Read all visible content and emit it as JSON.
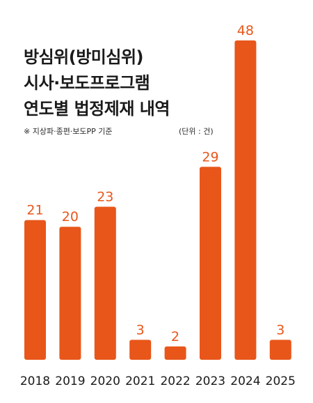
{
  "title_lines": [
    "방심위(방미심위)",
    "시사·보도프로그램",
    "연도별 법정제재 내역"
  ],
  "note": "※ 지상파·종편·보도PP 기준",
  "unit": "(단위 : 건)",
  "colors": {
    "bar": "#e8561a",
    "value_label": "#e8561a",
    "title": "#1a1a1a",
    "axis_label": "#1a1a1a"
  },
  "chart_data": {
    "type": "bar",
    "title": "방심위(방미심위) 시사·보도프로그램 연도별 법정제재 내역",
    "categories": [
      "2018",
      "2019",
      "2020",
      "2021",
      "2022",
      "2023",
      "2024",
      "2025"
    ],
    "values": [
      21,
      20,
      23,
      3,
      2,
      29,
      48,
      3
    ],
    "xlabel": "",
    "ylabel": "",
    "unit": "건",
    "ylim": [
      0,
      48
    ],
    "grid": false,
    "legend": "none"
  }
}
